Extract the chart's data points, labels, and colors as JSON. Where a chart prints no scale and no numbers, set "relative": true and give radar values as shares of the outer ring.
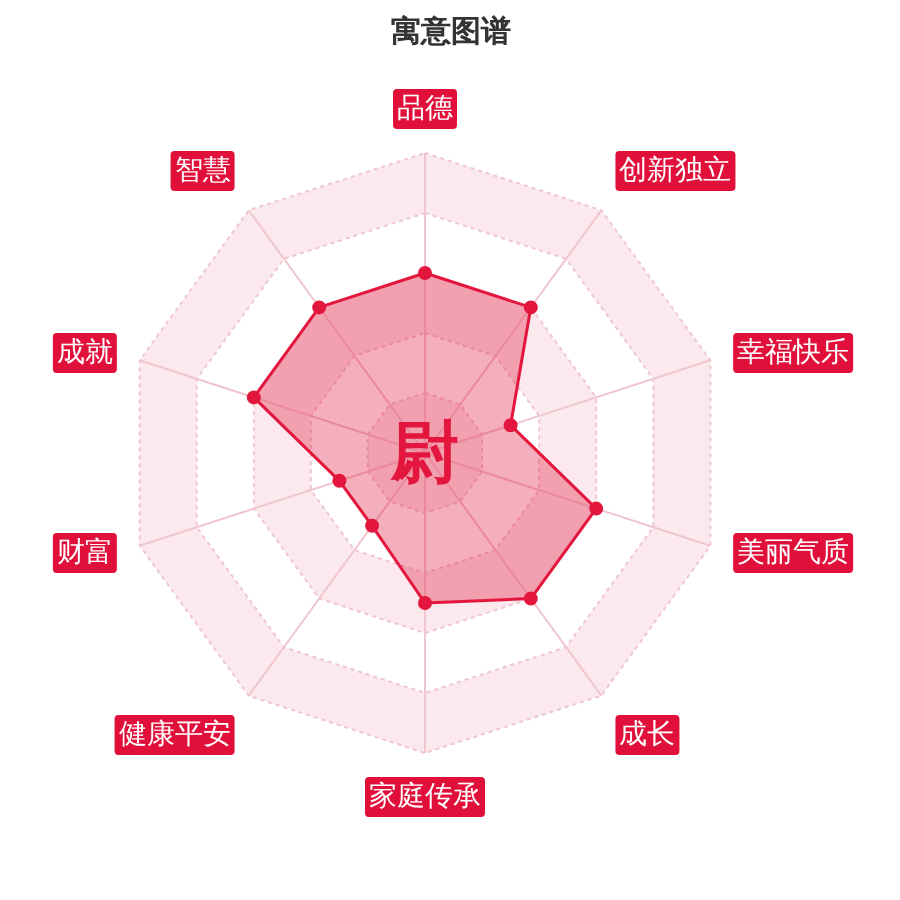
{
  "chart_data": {
    "type": "radar",
    "title": "寓意图谱",
    "categories": [
      "品德",
      "创新独立",
      "幸福快乐",
      "美丽气质",
      "成长",
      "家庭传承",
      "健康平安",
      "财富",
      "成就",
      "智慧"
    ],
    "series": [
      {
        "color": "#e3173d",
        "values": [
          0.6,
          0.6,
          0.3,
          0.6,
          0.6,
          0.5,
          0.3,
          0.3,
          0.6,
          0.6
        ]
      }
    ],
    "relative": true,
    "grid": true,
    "marker": "circle",
    "annotations": [
      "尉"
    ]
  }
}
